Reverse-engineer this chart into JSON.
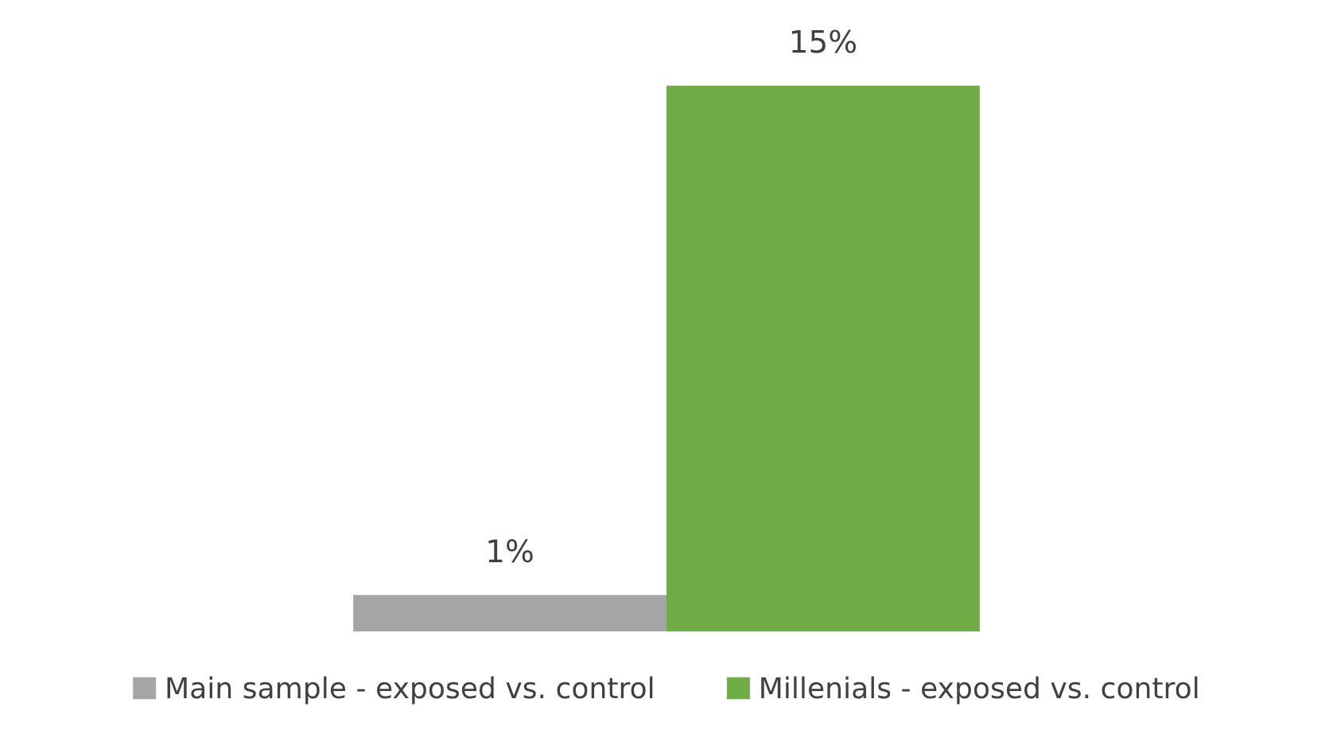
{
  "chart_data": {
    "type": "bar",
    "categories": [
      null
    ],
    "series": [
      {
        "name": "Main sample - exposed vs. control",
        "color": "#a5a5a5",
        "values": [
          1
        ],
        "value_labels": [
          "1%"
        ]
      },
      {
        "name": "Millenials - exposed vs. control",
        "color": "#70ad47",
        "values": [
          15
        ],
        "value_labels": [
          "15%"
        ]
      }
    ],
    "legend": "bottom",
    "grid": false
  }
}
